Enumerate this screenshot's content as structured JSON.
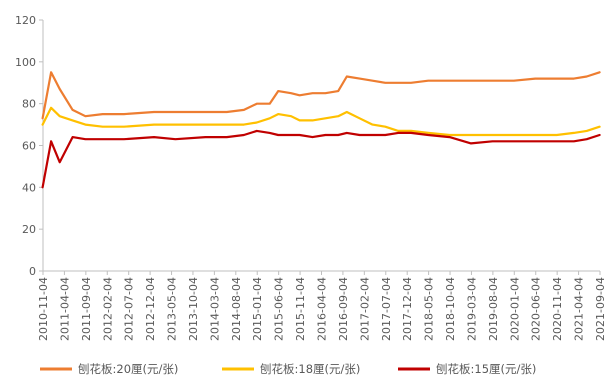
{
  "chart_data": {
    "type": "line",
    "title": "",
    "xlabel": "",
    "ylabel": "",
    "ylim": [
      0,
      120
    ],
    "yticks": [
      0,
      20,
      40,
      60,
      80,
      100,
      120
    ],
    "grid": false,
    "legend_position": "bottom",
    "x_tick_labels": [
      "2010-11-04",
      "2011-04-04",
      "2011-09-04",
      "2012-02-04",
      "2012-07-04",
      "2012-12-04",
      "2013-05-04",
      "2013-10-04",
      "2014-03-04",
      "2014-08-04",
      "2015-01-04",
      "2015-06-04",
      "2015-11-04",
      "2016-04-04",
      "2016-09-04",
      "2017-02-04",
      "2017-07-04",
      "2017-12-04",
      "2018-05-04",
      "2018-10-04",
      "2019-03-04",
      "2019-08-04",
      "2020-01-04",
      "2020-06-04",
      "2020-11-04",
      "2021-04-04",
      "2021-09-04"
    ],
    "x": [
      "2010-11",
      "2011-01",
      "2011-03",
      "2011-06",
      "2011-09",
      "2012-01",
      "2012-06",
      "2013-01",
      "2013-06",
      "2014-01",
      "2014-06",
      "2014-10",
      "2015-01",
      "2015-04",
      "2015-06",
      "2015-09",
      "2015-11",
      "2016-02",
      "2016-05",
      "2016-08",
      "2016-10",
      "2017-01",
      "2017-04",
      "2017-07",
      "2017-10",
      "2018-01",
      "2018-05",
      "2018-10",
      "2019-03",
      "2019-08",
      "2020-01",
      "2020-06",
      "2020-11",
      "2021-03",
      "2021-06",
      "2021-09"
    ],
    "series": [
      {
        "name": "刨花板:20厘(元/张)",
        "color": "#ED7D31",
        "values": [
          73,
          95,
          87,
          77,
          74,
          75,
          75,
          76,
          76,
          76,
          76,
          77,
          80,
          80,
          86,
          85,
          84,
          85,
          85,
          86,
          93,
          92,
          91,
          90,
          90,
          90,
          91,
          91,
          91,
          91,
          91,
          92,
          92,
          92,
          93,
          95
        ]
      },
      {
        "name": "刨花板:18厘(元/张)",
        "color": "#FFC000",
        "values": [
          70,
          78,
          74,
          72,
          70,
          69,
          69,
          70,
          70,
          70,
          70,
          70,
          71,
          73,
          75,
          74,
          72,
          72,
          73,
          74,
          76,
          73,
          70,
          69,
          67,
          67,
          66,
          65,
          65,
          65,
          65,
          65,
          65,
          66,
          67,
          69
        ]
      },
      {
        "name": "刨花板:15厘(元/张)",
        "color": "#C00000",
        "values": [
          40,
          62,
          52,
          64,
          63,
          63,
          63,
          64,
          63,
          64,
          64,
          65,
          67,
          66,
          65,
          65,
          65,
          64,
          65,
          65,
          66,
          65,
          65,
          65,
          66,
          66,
          65,
          64,
          61,
          62,
          62,
          62,
          62,
          62,
          63,
          65
        ]
      }
    ]
  }
}
